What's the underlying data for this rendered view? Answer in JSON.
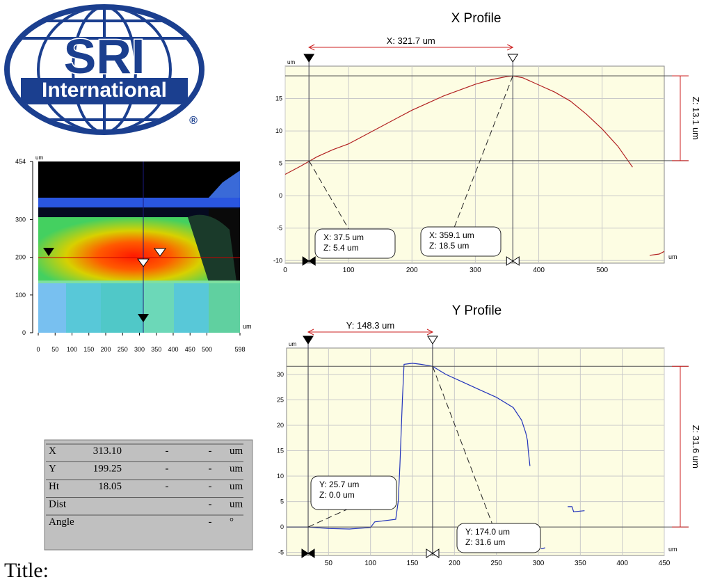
{
  "logo": {
    "name": "SRI",
    "tagline": "International",
    "mark": "®"
  },
  "chart_data": [
    {
      "type": "map",
      "x_unit": "um",
      "y_unit": "um",
      "xlim": [
        0,
        598
      ],
      "ylim": [
        0,
        454
      ],
      "xticks": [
        0,
        50,
        100,
        150,
        200,
        250,
        300,
        350,
        400,
        450,
        500,
        598
      ],
      "yticks": [
        0,
        100,
        200,
        300,
        454
      ]
    },
    {
      "type": "line",
      "title": "X Profile",
      "x_unit": "um",
      "y_unit": "um",
      "x": [
        0,
        25,
        50,
        75,
        100,
        125,
        150,
        175,
        200,
        225,
        250,
        275,
        300,
        325,
        350,
        359.1,
        375,
        400,
        425,
        450,
        475,
        500,
        525,
        548,
        560,
        575,
        590,
        598
      ],
      "series": [
        {
          "color": "#b22222",
          "values": [
            3.3,
            4.6,
            6.0,
            7.1,
            8.0,
            9.3,
            10.6,
            11.9,
            13.2,
            14.3,
            15.4,
            16.3,
            17.2,
            17.9,
            18.4,
            18.5,
            18.2,
            17.1,
            16.0,
            14.6,
            12.6,
            10.3,
            7.6,
            4.4,
            null,
            -9.2,
            -9.0,
            -8.6
          ]
        }
      ],
      "xlim": [
        0,
        598
      ],
      "ylim": [
        -10.4,
        20
      ],
      "xticks": [
        0,
        100,
        200,
        300,
        400,
        500
      ],
      "yticks": [
        -10,
        -5,
        0,
        5,
        10,
        15
      ],
      "grid": true,
      "cursors": [
        {
          "x": 37.5,
          "z": 5.4,
          "labels": [
            "X: 37.5 um",
            "Z: 5.4 um"
          ]
        },
        {
          "x": 359.1,
          "z": 18.5,
          "labels": [
            "X: 359.1 um",
            "Z: 18.5 um"
          ]
        }
      ],
      "x_span_label": "X: 321.7 um",
      "z_span_label": "Z: 13.1 um"
    },
    {
      "type": "line",
      "title": "Y Profile",
      "x_unit": "um",
      "y_unit": "um",
      "x": [
        0,
        25.7,
        50,
        75,
        100,
        105,
        130,
        133,
        135,
        138,
        140,
        150,
        160,
        174,
        190,
        210,
        230,
        250,
        270,
        280,
        285,
        287,
        288,
        290,
        296,
        303,
        308,
        320,
        335,
        340,
        342,
        355
      ],
      "series": [
        {
          "color": "#2233bb",
          "values": [
            0,
            0,
            -0.3,
            -0.4,
            -0.1,
            1,
            1.5,
            5,
            12,
            25,
            32,
            32.2,
            32,
            31.6,
            30,
            28.5,
            27,
            25.5,
            23.5,
            21,
            18.5,
            17,
            15,
            12,
            null,
            -4.3,
            -4.1,
            null,
            4,
            4,
            3,
            3.2
          ]
        }
      ],
      "xlim": [
        0,
        450
      ],
      "ylim": [
        -5.6,
        35.2
      ],
      "xticks": [
        50,
        100,
        150,
        200,
        250,
        300,
        350,
        400,
        450
      ],
      "yticks": [
        -5,
        0,
        5,
        10,
        15,
        20,
        25,
        30
      ],
      "grid": true,
      "cursors": [
        {
          "x": 25.7,
          "z": 0.0,
          "labels": [
            "Y: 25.7 um",
            "Z: 0.0 um"
          ]
        },
        {
          "x": 174.0,
          "z": 31.6,
          "labels": [
            "Y: 174.0 um",
            "Z: 31.6 um"
          ]
        }
      ],
      "x_span_label": "Y: 148.3 um",
      "z_span_label": "Z: 31.6 um"
    }
  ],
  "readout": {
    "rows": [
      {
        "label": "X",
        "value": "313.10",
        "a": "-",
        "b": "-",
        "unit": "um"
      },
      {
        "label": "Y",
        "value": "199.25",
        "a": "-",
        "b": "-",
        "unit": "um"
      },
      {
        "label": "Ht",
        "value": "18.05",
        "a": "-",
        "b": "-",
        "unit": "um"
      },
      {
        "label": "Dist",
        "b": "-",
        "unit": "um"
      },
      {
        "label": "Angle",
        "b": "-",
        "unit": "°"
      }
    ]
  },
  "title_label": "Title:"
}
